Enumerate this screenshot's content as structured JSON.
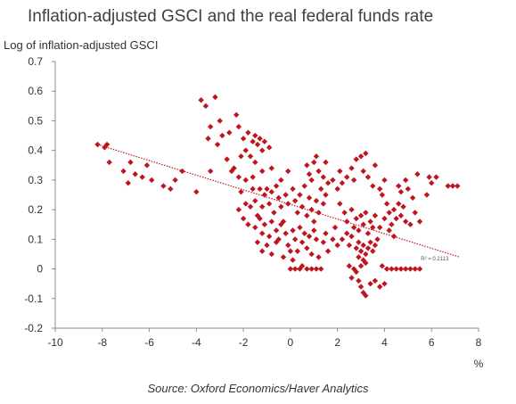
{
  "chart_data": {
    "type": "scatter",
    "title": "Inflation-adjusted GSCI and the real federal funds rate",
    "ylabel": "Log of inflation-adjusted GSCI",
    "xlabel": "%",
    "xlim": [
      -10,
      8
    ],
    "ylim": [
      -0.2,
      0.7
    ],
    "xticks": [
      "-10",
      "-8",
      "-6",
      "-4",
      "-2",
      "0",
      "2",
      "4",
      "6",
      "8"
    ],
    "yticks": [
      "0.7",
      "0.6",
      "0.5",
      "0.4",
      "0.3",
      "0.2",
      "0.1",
      "0",
      "-0.1",
      "-0.2"
    ],
    "grid": false,
    "marker_color": "#c0141e",
    "trendline": {
      "style": "dotted",
      "color": "#c0141e",
      "x": [
        -8.2,
        7.2
      ],
      "y": [
        0.42,
        0.04
      ],
      "label": "R² = 0.2113"
    },
    "source": "Source: Oxford Economics/Haver Analytics",
    "points": [
      [
        -8.2,
        0.42
      ],
      [
        -7.9,
        0.41
      ],
      [
        -7.8,
        0.42
      ],
      [
        -7.7,
        0.36
      ],
      [
        -7.1,
        0.33
      ],
      [
        -6.9,
        0.29
      ],
      [
        -6.8,
        0.36
      ],
      [
        -6.6,
        0.32
      ],
      [
        -6.3,
        0.31
      ],
      [
        -6.1,
        0.35
      ],
      [
        -5.9,
        0.3
      ],
      [
        -5.4,
        0.28
      ],
      [
        -5.1,
        0.27
      ],
      [
        -4.9,
        0.3
      ],
      [
        -4.6,
        0.33
      ],
      [
        -4.0,
        0.26
      ],
      [
        -3.4,
        0.33
      ],
      [
        -3.8,
        0.57
      ],
      [
        -3.6,
        0.55
      ],
      [
        -3.4,
        0.48
      ],
      [
        -3.2,
        0.58
      ],
      [
        -3.0,
        0.5
      ],
      [
        -2.9,
        0.45
      ],
      [
        -3.5,
        0.44
      ],
      [
        -3.1,
        0.42
      ],
      [
        -2.6,
        0.46
      ],
      [
        -2.7,
        0.37
      ],
      [
        -2.3,
        0.52
      ],
      [
        -2.2,
        0.48
      ],
      [
        -2.0,
        0.44
      ],
      [
        -1.9,
        0.4
      ],
      [
        -1.8,
        0.46
      ],
      [
        -1.6,
        0.43
      ],
      [
        -1.5,
        0.45
      ],
      [
        -1.4,
        0.42
      ],
      [
        -1.3,
        0.44
      ],
      [
        -1.2,
        0.4
      ],
      [
        -1.1,
        0.43
      ],
      [
        -0.9,
        0.41
      ],
      [
        -1.7,
        0.38
      ],
      [
        -2.4,
        0.34
      ],
      [
        -2.1,
        0.38
      ],
      [
        -1.5,
        0.36
      ],
      [
        -2.5,
        0.33
      ],
      [
        -2.2,
        0.31
      ],
      [
        -1.9,
        0.3
      ],
      [
        -1.6,
        0.31
      ],
      [
        -1.2,
        0.33
      ],
      [
        -0.8,
        0.34
      ],
      [
        -0.4,
        0.3
      ],
      [
        -0.1,
        0.33
      ],
      [
        -2.1,
        0.26
      ],
      [
        -1.9,
        0.22
      ],
      [
        -1.6,
        0.27
      ],
      [
        -1.5,
        0.23
      ],
      [
        -1.4,
        0.18
      ],
      [
        -1.3,
        0.27
      ],
      [
        -1.2,
        0.21
      ],
      [
        -1.1,
        0.25
      ],
      [
        -1.0,
        0.27
      ],
      [
        -0.9,
        0.22
      ],
      [
        -0.8,
        0.26
      ],
      [
        -0.7,
        0.19
      ],
      [
        -0.6,
        0.28
      ],
      [
        -0.5,
        0.24
      ],
      [
        -0.4,
        0.21
      ],
      [
        -0.3,
        0.16
      ],
      [
        -0.2,
        0.25
      ],
      [
        -0.1,
        0.22
      ],
      [
        0.1,
        0.27
      ],
      [
        0.2,
        0.23
      ],
      [
        0.3,
        0.19
      ],
      [
        0.4,
        0.25
      ],
      [
        0.5,
        0.21
      ],
      [
        0.6,
        0.28
      ],
      [
        0.7,
        0.18
      ],
      [
        0.8,
        0.24
      ],
      [
        0.9,
        0.2
      ],
      [
        1.0,
        0.16
      ],
      [
        1.1,
        0.23
      ],
      [
        1.2,
        0.19
      ],
      [
        1.3,
        0.27
      ],
      [
        1.4,
        0.22
      ],
      [
        1.5,
        0.25
      ],
      [
        1.6,
        0.29
      ],
      [
        -2.2,
        0.2
      ],
      [
        -2.0,
        0.17
      ],
      [
        -1.8,
        0.15
      ],
      [
        -1.7,
        0.21
      ],
      [
        -1.5,
        0.14
      ],
      [
        -1.3,
        0.17
      ],
      [
        -1.2,
        0.12
      ],
      [
        -1.1,
        0.15
      ],
      [
        -0.9,
        0.11
      ],
      [
        -0.8,
        0.16
      ],
      [
        -0.6,
        0.13
      ],
      [
        -0.5,
        0.1
      ],
      [
        -0.4,
        0.15
      ],
      [
        -0.2,
        0.12
      ],
      [
        -0.1,
        0.08
      ],
      [
        0.1,
        0.13
      ],
      [
        0.2,
        0.1
      ],
      [
        0.3,
        0.06
      ],
      [
        0.4,
        0.14
      ],
      [
        0.5,
        0.09
      ],
      [
        0.6,
        0.12
      ],
      [
        0.7,
        0.07
      ],
      [
        0.8,
        0.11
      ],
      [
        0.9,
        0.05
      ],
      [
        1.0,
        0.13
      ],
      [
        1.1,
        0.1
      ],
      [
        1.2,
        0.04
      ],
      [
        1.4,
        0.09
      ],
      [
        1.5,
        0.12
      ],
      [
        1.6,
        0.06
      ],
      [
        1.8,
        0.1
      ],
      [
        1.9,
        0.14
      ],
      [
        2.0,
        0.08
      ],
      [
        -1.4,
        0.09
      ],
      [
        -1.2,
        0.06
      ],
      [
        -1.0,
        0.08
      ],
      [
        -0.8,
        0.05
      ],
      [
        -0.6,
        0.09
      ],
      [
        -0.3,
        0.04
      ],
      [
        0.0,
        0.06
      ],
      [
        0.1,
        0.03
      ],
      [
        0.0,
        0.0
      ],
      [
        0.2,
        0.0
      ],
      [
        0.4,
        0.0
      ],
      [
        0.5,
        0.01
      ],
      [
        0.7,
        0.0
      ],
      [
        0.9,
        0.0
      ],
      [
        1.1,
        0.0
      ],
      [
        1.3,
        0.0
      ],
      [
        0.9,
        0.3
      ],
      [
        0.7,
        0.35
      ],
      [
        1.0,
        0.36
      ],
      [
        0.8,
        0.32
      ],
      [
        1.2,
        0.33
      ],
      [
        1.4,
        0.31
      ],
      [
        1.5,
        0.36
      ],
      [
        1.1,
        0.38
      ],
      [
        1.8,
        0.3
      ],
      [
        2.0,
        0.27
      ],
      [
        2.1,
        0.33
      ],
      [
        2.2,
        0.29
      ],
      [
        2.4,
        0.31
      ],
      [
        2.6,
        0.34
      ],
      [
        2.7,
        0.3
      ],
      [
        2.8,
        0.37
      ],
      [
        3.0,
        0.38
      ],
      [
        3.1,
        0.33
      ],
      [
        3.2,
        0.39
      ],
      [
        3.3,
        0.31
      ],
      [
        3.5,
        0.28
      ],
      [
        3.6,
        0.35
      ],
      [
        3.8,
        0.27
      ],
      [
        3.9,
        0.25
      ],
      [
        4.0,
        0.3
      ],
      [
        4.1,
        0.22
      ],
      [
        2.1,
        0.22
      ],
      [
        2.3,
        0.19
      ],
      [
        2.4,
        0.16
      ],
      [
        2.6,
        0.2
      ],
      [
        2.7,
        0.14
      ],
      [
        2.8,
        0.17
      ],
      [
        2.9,
        0.13
      ],
      [
        3.0,
        0.18
      ],
      [
        3.1,
        0.15
      ],
      [
        3.2,
        0.19
      ],
      [
        3.3,
        0.12
      ],
      [
        3.4,
        0.16
      ],
      [
        3.5,
        0.14
      ],
      [
        3.6,
        0.18
      ],
      [
        3.7,
        0.1
      ],
      [
        3.8,
        0.14
      ],
      [
        2.2,
        0.1
      ],
      [
        2.4,
        0.12
      ],
      [
        2.5,
        0.08
      ],
      [
        2.6,
        0.11
      ],
      [
        2.8,
        0.07
      ],
      [
        2.9,
        0.09
      ],
      [
        3.0,
        0.06
      ],
      [
        3.1,
        0.08
      ],
      [
        3.2,
        0.05
      ],
      [
        3.3,
        0.07
      ],
      [
        3.4,
        0.09
      ],
      [
        3.5,
        0.06
      ],
      [
        3.6,
        0.08
      ],
      [
        2.9,
        0.04
      ],
      [
        3.1,
        0.03
      ],
      [
        2.5,
        0.01
      ],
      [
        2.7,
        0.0
      ],
      [
        2.8,
        -0.01
      ],
      [
        3.0,
        0.01
      ],
      [
        3.2,
        0.02
      ],
      [
        2.6,
        -0.03
      ],
      [
        2.9,
        -0.04
      ],
      [
        3.0,
        -0.06
      ],
      [
        3.1,
        -0.08
      ],
      [
        3.2,
        -0.09
      ],
      [
        3.4,
        -0.05
      ],
      [
        3.6,
        -0.04
      ],
      [
        3.8,
        -0.06
      ],
      [
        4.0,
        -0.05
      ],
      [
        3.9,
        0.01
      ],
      [
        4.1,
        0.0
      ],
      [
        4.3,
        0.0
      ],
      [
        4.5,
        0.0
      ],
      [
        4.7,
        0.0
      ],
      [
        4.9,
        0.0
      ],
      [
        5.1,
        0.0
      ],
      [
        5.3,
        0.0
      ],
      [
        5.5,
        0.0
      ],
      [
        4.0,
        0.17
      ],
      [
        4.2,
        0.19
      ],
      [
        4.3,
        0.15
      ],
      [
        4.4,
        0.2
      ],
      [
        4.5,
        0.17
      ],
      [
        4.6,
        0.22
      ],
      [
        4.7,
        0.18
      ],
      [
        4.8,
        0.21
      ],
      [
        4.9,
        0.16
      ],
      [
        5.1,
        0.15
      ],
      [
        5.3,
        0.19
      ],
      [
        5.5,
        0.16
      ],
      [
        5.8,
        0.25
      ],
      [
        4.2,
        0.13
      ],
      [
        4.4,
        0.11
      ],
      [
        4.6,
        0.28
      ],
      [
        4.7,
        0.26
      ],
      [
        4.9,
        0.3
      ],
      [
        5.0,
        0.27
      ],
      [
        5.2,
        0.24
      ],
      [
        5.4,
        0.32
      ],
      [
        5.9,
        0.31
      ],
      [
        6.0,
        0.29
      ],
      [
        6.2,
        0.31
      ],
      [
        6.7,
        0.28
      ],
      [
        6.9,
        0.28
      ],
      [
        7.1,
        0.28
      ]
    ]
  }
}
